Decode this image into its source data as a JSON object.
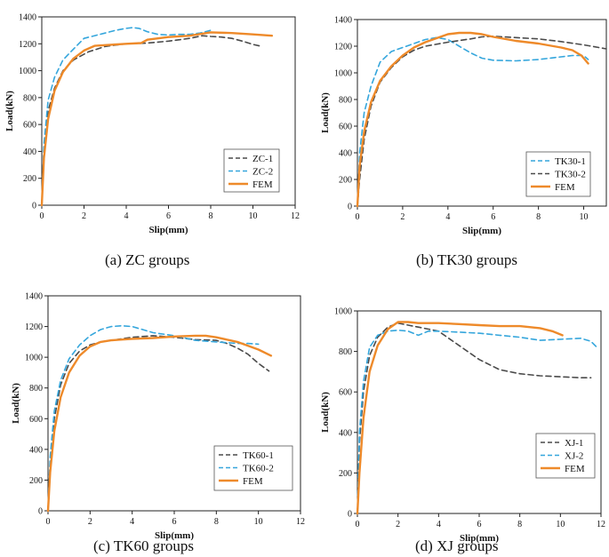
{
  "colors": {
    "dark": "#4a4a4a",
    "blue": "#35a6dc",
    "orange": "#ee8a2a",
    "axis": "#222222"
  },
  "chart_data": [
    {
      "type": "line",
      "title": "",
      "caption": "(a) ZC groups",
      "xlabel": "Slip(mm)",
      "ylabel": "Load(kN)",
      "xlim": [
        0,
        12
      ],
      "ylim": [
        0,
        1400
      ],
      "xticks": [
        0,
        2,
        4,
        6,
        8,
        10,
        12
      ],
      "yticks": [
        0,
        200,
        400,
        600,
        800,
        1000,
        1200,
        1400
      ],
      "legend_position": "bottom-right",
      "series": [
        {
          "name": "ZC-1",
          "style": "dashed",
          "color": "dark",
          "x": [
            0,
            0.1,
            0.3,
            0.6,
            1.0,
            1.5,
            2.2,
            3.0,
            4.0,
            5.0,
            6.0,
            7.0,
            7.6,
            8.0,
            8.5,
            9.0,
            9.5,
            10.0,
            10.3
          ],
          "y": [
            0,
            400,
            700,
            870,
            1000,
            1080,
            1140,
            1180,
            1200,
            1205,
            1220,
            1240,
            1260,
            1255,
            1250,
            1240,
            1220,
            1195,
            1185
          ]
        },
        {
          "name": "ZC-2",
          "style": "dashed",
          "color": "blue",
          "x": [
            0,
            0.1,
            0.3,
            0.6,
            1.0,
            1.5,
            2.0,
            3.0,
            3.5,
            4.0,
            4.3,
            4.6,
            5.0,
            5.5,
            6.0,
            6.5,
            7.0,
            7.5,
            8.0
          ],
          "y": [
            0,
            450,
            780,
            950,
            1080,
            1160,
            1240,
            1280,
            1300,
            1315,
            1320,
            1315,
            1290,
            1270,
            1265,
            1270,
            1270,
            1280,
            1300
          ]
        },
        {
          "name": "FEM",
          "style": "solid",
          "color": "orange",
          "x": [
            0,
            0.1,
            0.3,
            0.6,
            1.0,
            1.5,
            2.0,
            2.5,
            3.0,
            4.0,
            4.7,
            5.0,
            5.5,
            6.0,
            7.0,
            8.0,
            9.0,
            10.0,
            10.9
          ],
          "y": [
            0,
            350,
            640,
            850,
            990,
            1090,
            1150,
            1185,
            1190,
            1200,
            1205,
            1230,
            1240,
            1250,
            1260,
            1285,
            1280,
            1270,
            1260
          ]
        }
      ]
    },
    {
      "type": "line",
      "title": "",
      "caption": "(b) TK30 groups",
      "xlabel": "Slip(mm)",
      "ylabel": "Load(kN)",
      "xlim": [
        0,
        11
      ],
      "ylim": [
        0,
        1400
      ],
      "xticks": [
        0,
        2,
        4,
        6,
        8,
        10
      ],
      "yticks": [
        0,
        200,
        400,
        600,
        800,
        1000,
        1200,
        1400
      ],
      "legend_position": "bottom-right",
      "series": [
        {
          "name": "TK30-1",
          "style": "dashed",
          "color": "blue",
          "x": [
            0,
            0.1,
            0.3,
            0.6,
            1.0,
            1.5,
            2.0,
            2.5,
            3.0,
            3.5,
            4.0,
            4.5,
            5.0,
            5.5,
            6.0,
            7.0,
            8.0,
            9.0,
            9.5,
            10.0,
            10.2
          ],
          "y": [
            0,
            400,
            700,
            900,
            1080,
            1160,
            1190,
            1220,
            1250,
            1265,
            1250,
            1200,
            1150,
            1110,
            1095,
            1090,
            1100,
            1120,
            1130,
            1130,
            1100
          ]
        },
        {
          "name": "TK30-2",
          "style": "dashed",
          "color": "dark",
          "x": [
            0,
            0.1,
            0.3,
            0.6,
            1.0,
            1.5,
            2.0,
            2.5,
            3.0,
            4.0,
            5.0,
            5.5,
            6.0,
            7.0,
            8.0,
            9.0,
            10.0,
            11.0
          ],
          "y": [
            0,
            200,
            500,
            750,
            930,
            1040,
            1120,
            1170,
            1200,
            1230,
            1255,
            1270,
            1275,
            1265,
            1255,
            1235,
            1210,
            1180
          ]
        },
        {
          "name": "FEM",
          "style": "solid",
          "color": "orange",
          "x": [
            0,
            0.1,
            0.3,
            0.6,
            1.0,
            1.5,
            2.0,
            2.5,
            3.0,
            3.5,
            4.0,
            4.5,
            5.0,
            5.5,
            6.0,
            7.0,
            8.0,
            9.0,
            9.5,
            9.9,
            10.2
          ],
          "y": [
            0,
            300,
            560,
            780,
            940,
            1050,
            1130,
            1190,
            1230,
            1260,
            1290,
            1300,
            1300,
            1290,
            1270,
            1240,
            1220,
            1190,
            1170,
            1130,
            1070
          ]
        }
      ]
    },
    {
      "type": "line",
      "title": "",
      "caption": "(c) TK60 groups",
      "xlabel": "Slip(mm)",
      "ylabel": "Load(kN)",
      "xlim": [
        0,
        12
      ],
      "ylim": [
        0,
        1400
      ],
      "xticks": [
        0,
        2,
        4,
        6,
        8,
        10,
        12
      ],
      "yticks": [
        0,
        200,
        400,
        600,
        800,
        1000,
        1200,
        1400
      ],
      "legend_position": "bottom-right",
      "series": [
        {
          "name": "TK60-1",
          "style": "dashed",
          "color": "dark",
          "x": [
            0,
            0.1,
            0.3,
            0.6,
            1.0,
            1.5,
            2.0,
            2.5,
            3.0,
            4.0,
            5.0,
            6.0,
            7.0,
            8.0,
            8.5,
            9.0,
            9.5,
            10.0,
            10.5
          ],
          "y": [
            0,
            300,
            600,
            820,
            960,
            1040,
            1080,
            1100,
            1110,
            1130,
            1140,
            1130,
            1115,
            1110,
            1090,
            1060,
            1020,
            960,
            910
          ]
        },
        {
          "name": "TK60-2",
          "style": "dashed",
          "color": "blue",
          "x": [
            0,
            0.1,
            0.3,
            0.6,
            1.0,
            1.5,
            2.0,
            2.5,
            3.0,
            3.5,
            4.0,
            4.5,
            5.0,
            6.0,
            7.0,
            8.0,
            9.0,
            9.5,
            10.0
          ],
          "y": [
            0,
            350,
            650,
            850,
            990,
            1080,
            1140,
            1180,
            1200,
            1205,
            1200,
            1180,
            1160,
            1140,
            1110,
            1100,
            1090,
            1090,
            1085
          ]
        },
        {
          "name": "FEM",
          "style": "solid",
          "color": "orange",
          "x": [
            0,
            0.1,
            0.3,
            0.6,
            1.0,
            1.5,
            2.0,
            2.5,
            3.0,
            4.0,
            5.0,
            6.0,
            7.0,
            7.5,
            8.0,
            9.0,
            10.0,
            10.6
          ],
          "y": [
            0,
            250,
            520,
            740,
            900,
            1010,
            1070,
            1100,
            1110,
            1120,
            1125,
            1135,
            1140,
            1140,
            1130,
            1100,
            1050,
            1010
          ]
        }
      ]
    },
    {
      "type": "line",
      "title": "",
      "caption": "(d) XJ groups",
      "xlabel": "Slip(mm)",
      "ylabel": "Load(kN)",
      "xlim": [
        0,
        12
      ],
      "ylim": [
        0,
        1000
      ],
      "xticks": [
        0,
        2,
        4,
        6,
        8,
        10,
        12
      ],
      "yticks": [
        0,
        200,
        400,
        600,
        800,
        1000
      ],
      "legend_position": "bottom-right",
      "series": [
        {
          "name": "XJ-1",
          "style": "dashed",
          "color": "dark",
          "x": [
            0,
            0.1,
            0.3,
            0.6,
            1.0,
            1.5,
            2.0,
            2.5,
            3.0,
            3.5,
            4.0,
            5.0,
            6.0,
            7.0,
            8.0,
            9.0,
            10.0,
            11.0,
            11.5
          ],
          "y": [
            0,
            350,
            600,
            780,
            870,
            920,
            940,
            930,
            920,
            910,
            900,
            830,
            760,
            710,
            690,
            680,
            675,
            670,
            670
          ]
        },
        {
          "name": "XJ-2",
          "style": "dashed",
          "color": "blue",
          "x": [
            0,
            0.1,
            0.3,
            0.6,
            1.0,
            1.5,
            2.0,
            2.5,
            3.0,
            3.5,
            4.0,
            5.0,
            6.0,
            7.0,
            8.0,
            9.0,
            10.0,
            11.0,
            11.5,
            11.8
          ],
          "y": [
            0,
            400,
            650,
            820,
            880,
            900,
            905,
            900,
            880,
            900,
            900,
            895,
            890,
            880,
            870,
            855,
            860,
            865,
            850,
            820
          ]
        },
        {
          "name": "FEM",
          "style": "solid",
          "color": "orange",
          "x": [
            0,
            0.1,
            0.3,
            0.6,
            1.0,
            1.5,
            2.0,
            2.5,
            3.0,
            4.0,
            5.0,
            6.0,
            7.0,
            8.0,
            9.0,
            9.6,
            10.1
          ],
          "y": [
            0,
            200,
            470,
            700,
            830,
            910,
            945,
            945,
            940,
            940,
            935,
            930,
            925,
            925,
            915,
            900,
            880
          ]
        }
      ]
    }
  ]
}
